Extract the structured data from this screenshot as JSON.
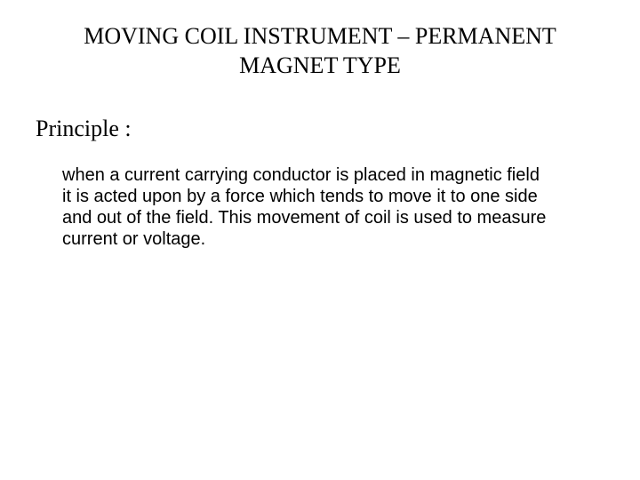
{
  "slide": {
    "title": "MOVING COIL INSTRUMENT – PERMANENT MAGNET TYPE",
    "section_heading": "Principle  :",
    "body": "when a current carrying conductor is placed in magnetic field it is acted upon by a force which tends to move it to one side and out of the field. This movement of coil is used to measure current or voltage."
  },
  "style": {
    "background_color": "#ffffff",
    "text_color": "#000000",
    "title_font": "Times New Roman",
    "title_fontsize": 26,
    "heading_font": "Times New Roman",
    "heading_fontsize": 26,
    "body_font": "Arial",
    "body_fontsize": 20
  }
}
